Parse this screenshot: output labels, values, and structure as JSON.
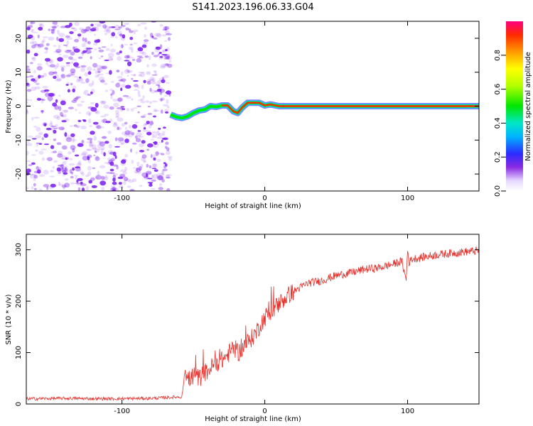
{
  "title": "S141.2023.196.06.33.G04",
  "colors": {
    "snr_line": "#e8302b",
    "speckle": "#7a1cf0",
    "axis": "#000000"
  },
  "chart_data": [
    {
      "type": "heatmap",
      "xlabel": "Height of straight line (km)",
      "ylabel": "Frequency (Hz)",
      "xlim": [
        -167,
        150
      ],
      "ylim": [
        -25,
        25
      ],
      "xticks": [
        -100,
        0,
        100
      ],
      "yticks": [
        -20,
        -10,
        0,
        10,
        20
      ],
      "noise_region_x": [
        -167,
        -66
      ],
      "ridge": {
        "x": [
          -66,
          -62,
          -58,
          -54,
          -50,
          -46,
          -42,
          -38,
          -34,
          -30,
          -26,
          -22,
          -19,
          -16,
          -12,
          -8,
          -4,
          0,
          4,
          10,
          20,
          40,
          60,
          80,
          100,
          120,
          150
        ],
        "freq": [
          -2.5,
          -3.2,
          -3.5,
          -3.0,
          -2.0,
          -1.3,
          -1.0,
          0.0,
          -0.2,
          0.2,
          0.2,
          -1.5,
          -2.0,
          -0.5,
          1.0,
          1.0,
          1.0,
          0.2,
          0.5,
          0.0,
          0.0,
          0.0,
          0.0,
          0.0,
          0.0,
          0.0,
          0.0
        ]
      },
      "colorbar": {
        "label": "Normalized spectral amplitude",
        "range": [
          0,
          1
        ],
        "ticks": [
          0.0,
          0.2,
          0.4,
          0.6,
          0.8
        ]
      }
    },
    {
      "type": "line",
      "xlabel": "Height of straight line (km)",
      "ylabel": "SNR (10 * v/v)",
      "xlim": [
        -167,
        150
      ],
      "ylim": [
        0,
        330
      ],
      "xticks": [
        -100,
        0,
        100
      ],
      "yticks": [
        0,
        100,
        200,
        300
      ],
      "series": [
        {
          "x": [
            -167,
            -140,
            -110,
            -80,
            -58,
            -56,
            -54,
            -50,
            -46,
            -42,
            -38,
            -34,
            -30,
            -26,
            -22,
            -18,
            -14,
            -10,
            -6,
            -2,
            2,
            6,
            10,
            14,
            18,
            24,
            30,
            40,
            50,
            60,
            70,
            80,
            90,
            96,
            99,
            100,
            101,
            103,
            110,
            120,
            130,
            140,
            150
          ],
          "y": [
            10,
            11,
            10,
            11,
            14,
            60,
            45,
            55,
            50,
            60,
            70,
            80,
            85,
            95,
            110,
            100,
            115,
            125,
            140,
            160,
            175,
            185,
            195,
            205,
            215,
            225,
            235,
            240,
            250,
            255,
            262,
            265,
            272,
            278,
            240,
            300,
            275,
            282,
            285,
            290,
            293,
            296,
            298
          ]
        }
      ]
    }
  ]
}
